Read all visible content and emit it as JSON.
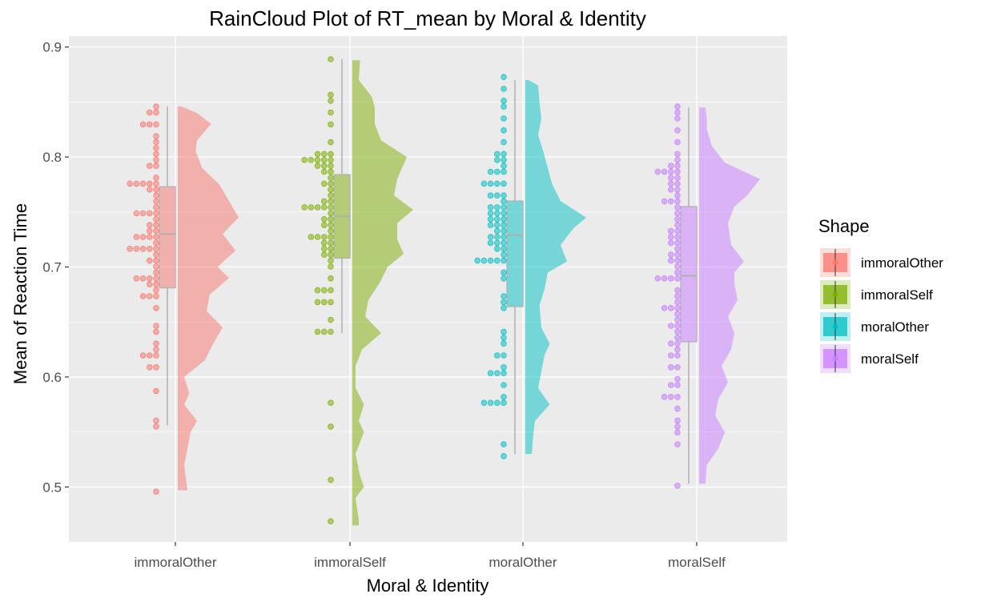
{
  "chart_data": {
    "type": "raincloud",
    "title": "RainCloud Plot of RT_mean by Moral & Identity",
    "xlabel": "Moral & Identity",
    "ylabel": "Mean of Reaction Time",
    "ylim": [
      0.45,
      0.91
    ],
    "yticks": [
      0.5,
      0.6,
      0.7,
      0.8,
      0.9
    ],
    "categories": [
      "immoralOther",
      "immoralSelf",
      "moralOther",
      "moralSelf"
    ],
    "legend": {
      "title": "Shape",
      "position": "right"
    },
    "grid": true,
    "series": [
      {
        "name": "immoralOther",
        "color": "#F8766D",
        "box": {
          "min": 0.556,
          "q1": 0.681,
          "median": 0.73,
          "q3": 0.773,
          "max": 0.846
        },
        "points": [
          0.846,
          0.838,
          0.838,
          0.832,
          0.832,
          0.827,
          0.82,
          0.815,
          0.81,
          0.805,
          0.8,
          0.79,
          0.79,
          0.783,
          0.778,
          0.775,
          0.775,
          0.775,
          0.775,
          0.77,
          0.77,
          0.765,
          0.76,
          0.755,
          0.75,
          0.75,
          0.75,
          0.748,
          0.745,
          0.74,
          0.74,
          0.735,
          0.735,
          0.73,
          0.73,
          0.73,
          0.727,
          0.722,
          0.717,
          0.717,
          0.717,
          0.717,
          0.714,
          0.71,
          0.705,
          0.705,
          0.7,
          0.695,
          0.692,
          0.692,
          0.692,
          0.69,
          0.684,
          0.684,
          0.681,
          0.675,
          0.675,
          0.675,
          0.664,
          0.647,
          0.642,
          0.633,
          0.627,
          0.62,
          0.62,
          0.617,
          0.61,
          0.61,
          0.585,
          0.561,
          0.556,
          0.496
        ],
        "density": [
          [
            0.497,
            0.15
          ],
          [
            0.52,
            0.1
          ],
          [
            0.55,
            0.2
          ],
          [
            0.56,
            0.3
          ],
          [
            0.575,
            0.1
          ],
          [
            0.585,
            0.18
          ],
          [
            0.6,
            0.1
          ],
          [
            0.615,
            0.42
          ],
          [
            0.63,
            0.55
          ],
          [
            0.645,
            0.7
          ],
          [
            0.66,
            0.45
          ],
          [
            0.675,
            0.5
          ],
          [
            0.69,
            0.8
          ],
          [
            0.7,
            0.62
          ],
          [
            0.715,
            0.9
          ],
          [
            0.73,
            0.7
          ],
          [
            0.745,
            0.95
          ],
          [
            0.755,
            0.85
          ],
          [
            0.775,
            0.65
          ],
          [
            0.79,
            0.38
          ],
          [
            0.805,
            0.28
          ],
          [
            0.815,
            0.3
          ],
          [
            0.83,
            0.52
          ],
          [
            0.84,
            0.3
          ],
          [
            0.846,
            0.05
          ]
        ]
      },
      {
        "name": "immoralSelf",
        "color": "#7CAE00",
        "box": {
          "min": 0.64,
          "q1": 0.708,
          "median": 0.746,
          "q3": 0.784,
          "max": 0.889
        },
        "points": [
          0.889,
          0.856,
          0.85,
          0.838,
          0.827,
          0.815,
          0.805,
          0.805,
          0.805,
          0.8,
          0.8,
          0.8,
          0.795,
          0.795,
          0.79,
          0.79,
          0.79,
          0.785,
          0.785,
          0.78,
          0.775,
          0.775,
          0.77,
          0.765,
          0.76,
          0.76,
          0.755,
          0.752,
          0.752,
          0.752,
          0.752,
          0.75,
          0.745,
          0.745,
          0.74,
          0.74,
          0.735,
          0.73,
          0.73,
          0.725,
          0.725,
          0.722,
          0.72,
          0.717,
          0.715,
          0.712,
          0.712,
          0.705,
          0.698,
          0.69,
          0.68,
          0.68,
          0.68,
          0.67,
          0.667,
          0.667,
          0.65,
          0.64,
          0.64,
          0.64,
          0.575,
          0.553,
          0.504,
          0.467
        ],
        "density": [
          [
            0.465,
            0.1
          ],
          [
            0.47,
            0.1
          ],
          [
            0.49,
            0.05
          ],
          [
            0.5,
            0.18
          ],
          [
            0.51,
            0.12
          ],
          [
            0.53,
            0.05
          ],
          [
            0.55,
            0.18
          ],
          [
            0.56,
            0.1
          ],
          [
            0.575,
            0.18
          ],
          [
            0.59,
            0.05
          ],
          [
            0.61,
            0.05
          ],
          [
            0.625,
            0.15
          ],
          [
            0.64,
            0.45
          ],
          [
            0.655,
            0.2
          ],
          [
            0.67,
            0.25
          ],
          [
            0.685,
            0.42
          ],
          [
            0.7,
            0.55
          ],
          [
            0.712,
            0.8
          ],
          [
            0.725,
            0.7
          ],
          [
            0.74,
            0.7
          ],
          [
            0.752,
            0.95
          ],
          [
            0.765,
            0.65
          ],
          [
            0.78,
            0.7
          ],
          [
            0.8,
            0.85
          ],
          [
            0.815,
            0.45
          ],
          [
            0.83,
            0.35
          ],
          [
            0.845,
            0.35
          ],
          [
            0.855,
            0.3
          ],
          [
            0.87,
            0.1
          ],
          [
            0.888,
            0.12
          ]
        ]
      },
      {
        "name": "moralOther",
        "color": "#00BFC4",
        "box": {
          "min": 0.53,
          "q1": 0.664,
          "median": 0.729,
          "q3": 0.76,
          "max": 0.87
        },
        "points": [
          0.871,
          0.864,
          0.85,
          0.844,
          0.837,
          0.826,
          0.815,
          0.805,
          0.805,
          0.796,
          0.796,
          0.794,
          0.785,
          0.785,
          0.785,
          0.775,
          0.775,
          0.775,
          0.775,
          0.765,
          0.765,
          0.765,
          0.76,
          0.755,
          0.755,
          0.752,
          0.748,
          0.748,
          0.748,
          0.745,
          0.745,
          0.742,
          0.74,
          0.74,
          0.74,
          0.735,
          0.735,
          0.73,
          0.73,
          0.725,
          0.722,
          0.722,
          0.722,
          0.717,
          0.715,
          0.712,
          0.705,
          0.705,
          0.705,
          0.705,
          0.705,
          0.695,
          0.69,
          0.676,
          0.667,
          0.663,
          0.643,
          0.637,
          0.632,
          0.62,
          0.617,
          0.61,
          0.601,
          0.601,
          0.601,
          0.59,
          0.58,
          0.575,
          0.575,
          0.575,
          0.575,
          0.54,
          0.53
        ],
        "density": [
          [
            0.53,
            0.1
          ],
          [
            0.545,
            0.12
          ],
          [
            0.56,
            0.15
          ],
          [
            0.575,
            0.38
          ],
          [
            0.59,
            0.2
          ],
          [
            0.605,
            0.25
          ],
          [
            0.62,
            0.3
          ],
          [
            0.63,
            0.38
          ],
          [
            0.645,
            0.25
          ],
          [
            0.665,
            0.22
          ],
          [
            0.68,
            0.3
          ],
          [
            0.695,
            0.35
          ],
          [
            0.705,
            0.65
          ],
          [
            0.72,
            0.55
          ],
          [
            0.735,
            0.75
          ],
          [
            0.745,
            0.95
          ],
          [
            0.76,
            0.55
          ],
          [
            0.775,
            0.42
          ],
          [
            0.79,
            0.35
          ],
          [
            0.805,
            0.28
          ],
          [
            0.82,
            0.2
          ],
          [
            0.835,
            0.25
          ],
          [
            0.85,
            0.22
          ],
          [
            0.865,
            0.2
          ],
          [
            0.87,
            0.05
          ]
        ]
      },
      {
        "name": "moralSelf",
        "color": "#C77CFF",
        "box": {
          "min": 0.503,
          "q1": 0.632,
          "median": 0.692,
          "q3": 0.755,
          "max": 0.845
        },
        "points": [
          0.845,
          0.838,
          0.835,
          0.826,
          0.815,
          0.805,
          0.795,
          0.79,
          0.79,
          0.785,
          0.785,
          0.785,
          0.785,
          0.78,
          0.78,
          0.775,
          0.775,
          0.77,
          0.77,
          0.765,
          0.76,
          0.76,
          0.76,
          0.755,
          0.75,
          0.745,
          0.74,
          0.735,
          0.732,
          0.73,
          0.725,
          0.722,
          0.72,
          0.715,
          0.712,
          0.71,
          0.705,
          0.705,
          0.7,
          0.695,
          0.69,
          0.69,
          0.69,
          0.687,
          0.68,
          0.675,
          0.67,
          0.665,
          0.66,
          0.66,
          0.655,
          0.65,
          0.645,
          0.645,
          0.64,
          0.635,
          0.63,
          0.63,
          0.625,
          0.62,
          0.617,
          0.61,
          0.61,
          0.6,
          0.595,
          0.59,
          0.584,
          0.582,
          0.582,
          0.57,
          0.56,
          0.553,
          0.548,
          0.54,
          0.503
        ],
        "density": [
          [
            0.503,
            0.1
          ],
          [
            0.52,
            0.12
          ],
          [
            0.535,
            0.3
          ],
          [
            0.55,
            0.4
          ],
          [
            0.565,
            0.25
          ],
          [
            0.58,
            0.3
          ],
          [
            0.595,
            0.45
          ],
          [
            0.61,
            0.35
          ],
          [
            0.625,
            0.5
          ],
          [
            0.64,
            0.55
          ],
          [
            0.655,
            0.45
          ],
          [
            0.67,
            0.6
          ],
          [
            0.685,
            0.55
          ],
          [
            0.695,
            0.55
          ],
          [
            0.705,
            0.7
          ],
          [
            0.72,
            0.5
          ],
          [
            0.74,
            0.45
          ],
          [
            0.755,
            0.55
          ],
          [
            0.765,
            0.75
          ],
          [
            0.78,
            0.95
          ],
          [
            0.795,
            0.4
          ],
          [
            0.81,
            0.2
          ],
          [
            0.825,
            0.12
          ],
          [
            0.835,
            0.12
          ],
          [
            0.845,
            0.1
          ]
        ]
      }
    ]
  }
}
